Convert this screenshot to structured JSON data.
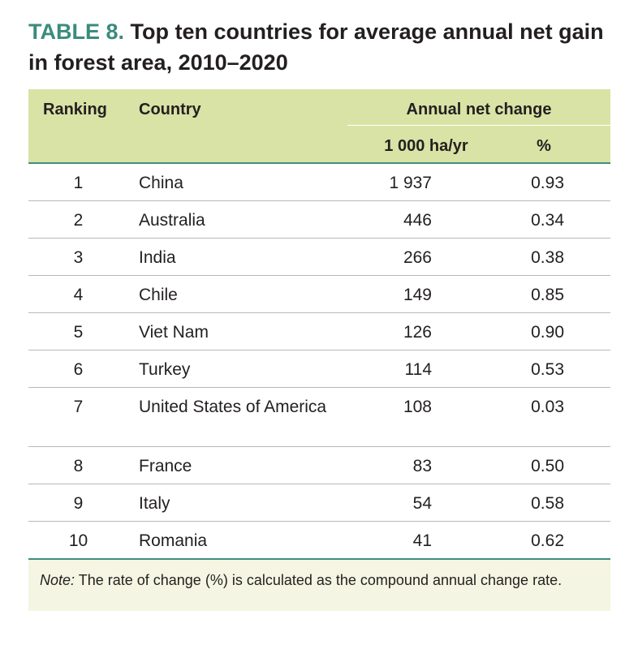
{
  "title": {
    "label": "TABLE 8.",
    "text": "Top ten countries for average annual net gain in forest area, 2010–2020"
  },
  "table": {
    "headers": {
      "ranking": "Ranking",
      "country": "Country",
      "annual_net_change": "Annual net change",
      "ha_per_yr": "1 000 ha/yr",
      "percent": "%"
    },
    "rows": [
      {
        "rank": "1",
        "country": "China",
        "ha": "1 937",
        "pct": "0.93"
      },
      {
        "rank": "2",
        "country": "Australia",
        "ha": "446",
        "pct": "0.34"
      },
      {
        "rank": "3",
        "country": "India",
        "ha": "266",
        "pct": "0.38"
      },
      {
        "rank": "4",
        "country": "Chile",
        "ha": "149",
        "pct": "0.85"
      },
      {
        "rank": "5",
        "country": "Viet Nam",
        "ha": "126",
        "pct": "0.90"
      },
      {
        "rank": "6",
        "country": "Turkey",
        "ha": "114",
        "pct": "0.53"
      },
      {
        "rank": "7",
        "country": "United States of America",
        "ha": "108",
        "pct": "0.03"
      },
      {
        "rank": "8",
        "country": "France",
        "ha": "83",
        "pct": "0.50"
      },
      {
        "rank": "9",
        "country": "Italy",
        "ha": "54",
        "pct": "0.58"
      },
      {
        "rank": "10",
        "country": "Romania",
        "ha": "41",
        "pct": "0.62"
      }
    ]
  },
  "note": {
    "label": "Note:",
    "text": "The rate of change (%) is calculated as the compound annual change rate."
  },
  "colors": {
    "title_label": "#3a8c7c",
    "header_bg": "#d9e3a5",
    "rule": "#3f8f7e",
    "note_bg": "#f4f5e2"
  }
}
